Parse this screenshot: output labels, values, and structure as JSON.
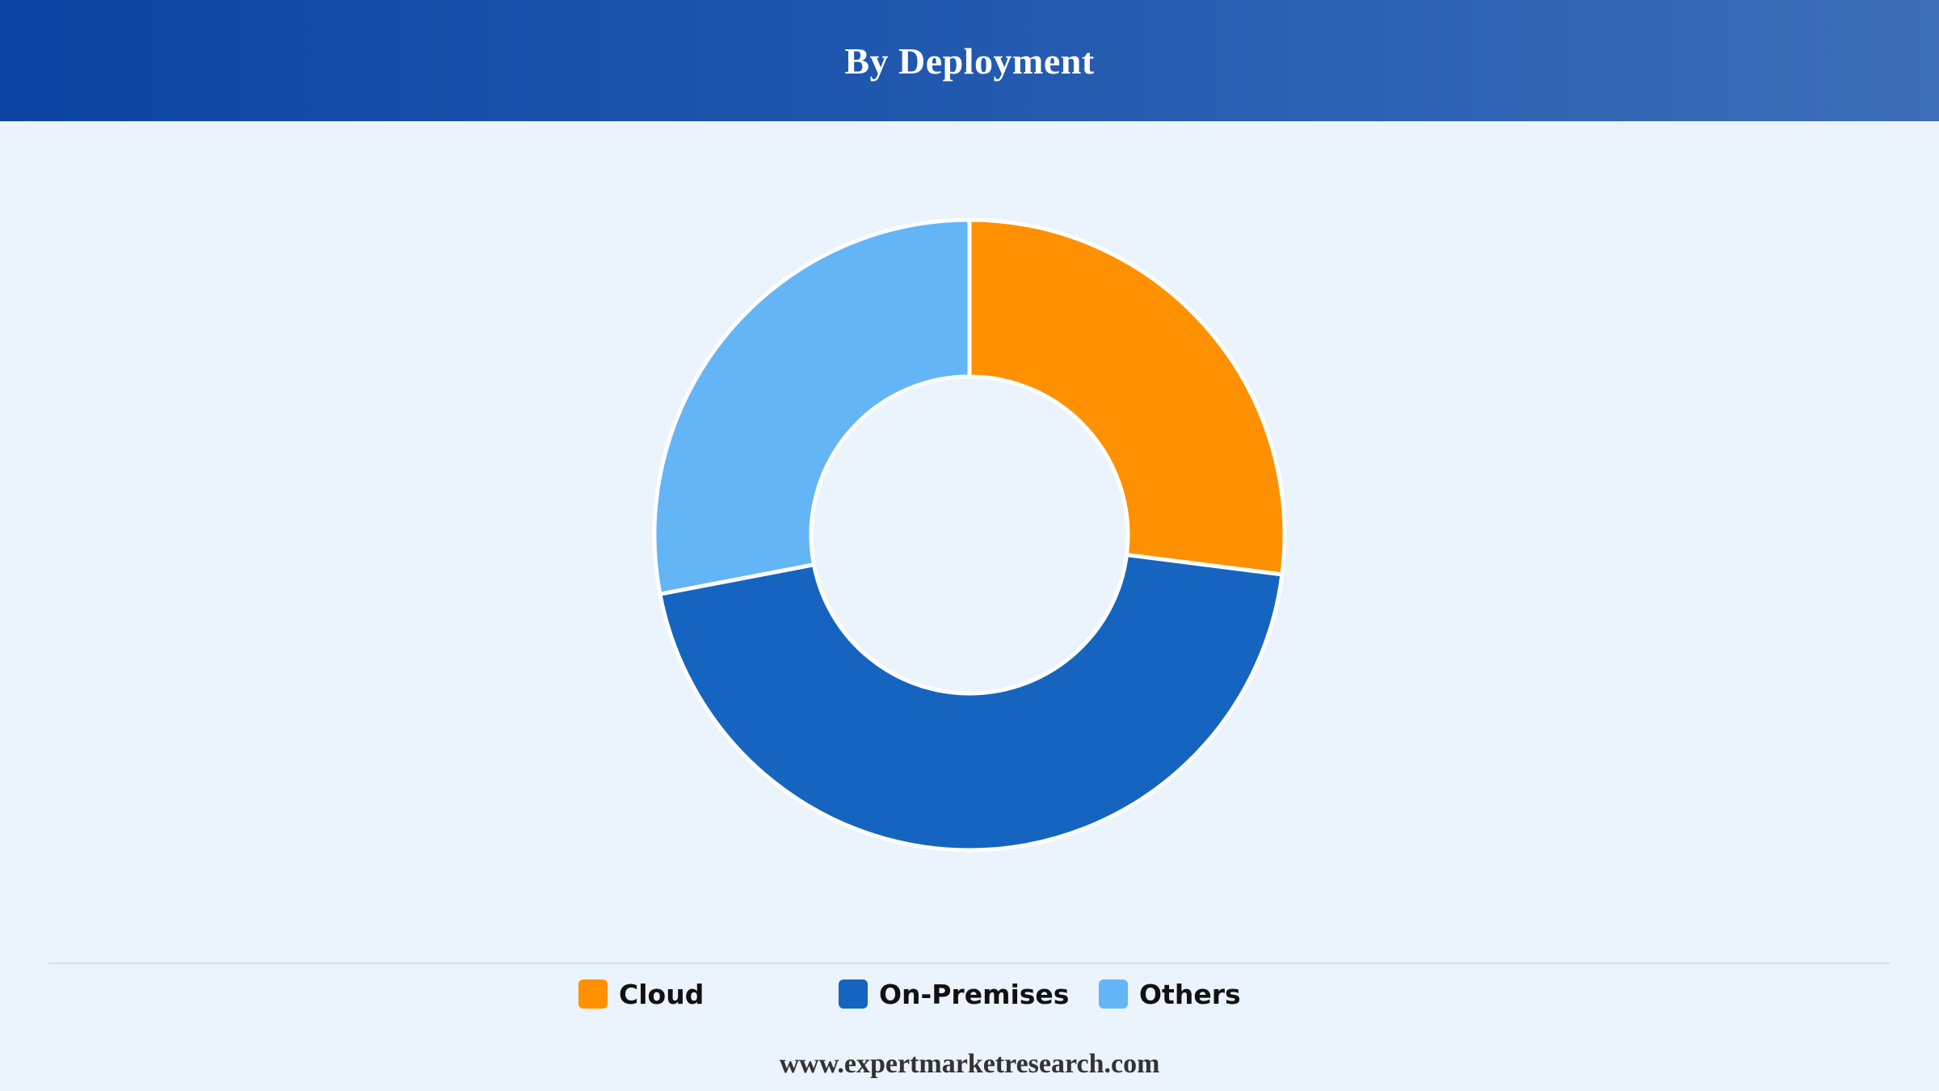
{
  "header": {
    "title": "By Deployment"
  },
  "chart_data": {
    "type": "pie",
    "variant": "donut",
    "title": "By Deployment",
    "categories": [
      "Cloud",
      "On-Premises",
      "Others"
    ],
    "values": [
      27,
      45,
      28
    ],
    "colors": [
      "#FF9000",
      "#1565C0",
      "#64B5F6"
    ],
    "legend_position": "bottom"
  },
  "legend": {
    "items": [
      {
        "label": "Cloud",
        "color": "#FF9000"
      },
      {
        "label": "On-Premises",
        "color": "#1565C0"
      },
      {
        "label": "Others",
        "color": "#64B5F6"
      }
    ]
  },
  "footer": {
    "source": "www.expertmarketresearch.com"
  }
}
